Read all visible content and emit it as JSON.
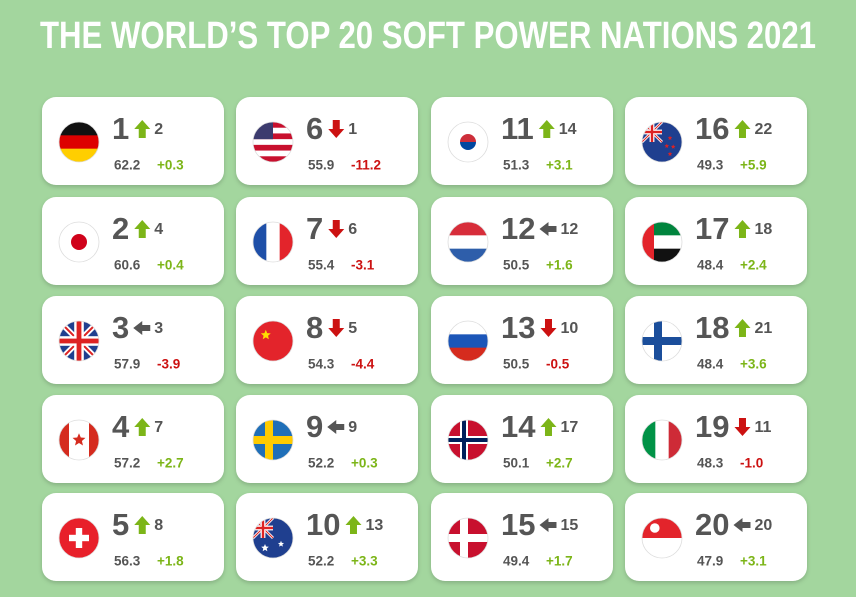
{
  "title": "THE WORLD’S TOP 20 SOFT POWER NATIONS 2021",
  "cards": [
    {
      "rank": "1",
      "previous": "2",
      "score": "62.2",
      "change": "+0.3"
    },
    {
      "rank": "2",
      "previous": "4",
      "score": "60.6",
      "change": "+0.4"
    },
    {
      "rank": "3",
      "previous": "3",
      "score": "57.9",
      "change": "-3.9"
    },
    {
      "rank": "4",
      "previous": "7",
      "score": "57.2",
      "change": "+2.7"
    },
    {
      "rank": "5",
      "previous": "8",
      "score": "56.3",
      "change": "+1.8"
    },
    {
      "rank": "6",
      "previous": "1",
      "score": "55.9",
      "change": "-11.2"
    },
    {
      "rank": "7",
      "previous": "6",
      "score": "55.4",
      "change": "-3.1"
    },
    {
      "rank": "8",
      "previous": "5",
      "score": "54.3",
      "change": "-4.4"
    },
    {
      "rank": "9",
      "previous": "9",
      "score": "52.2",
      "change": "+0.3"
    },
    {
      "rank": "10",
      "previous": "13",
      "score": "52.2",
      "change": "+3.3"
    },
    {
      "rank": "11",
      "previous": "14",
      "score": "51.3",
      "change": "+3.1"
    },
    {
      "rank": "12",
      "previous": "12",
      "score": "50.5",
      "change": "+1.6"
    },
    {
      "rank": "13",
      "previous": "10",
      "score": "50.5",
      "change": "-0.5"
    },
    {
      "rank": "14",
      "previous": "17",
      "score": "50.1",
      "change": "+2.7"
    },
    {
      "rank": "15",
      "previous": "15",
      "score": "49.4",
      "change": "+1.7"
    },
    {
      "rank": "16",
      "previous": "22",
      "score": "49.3",
      "change": "+5.9"
    },
    {
      "rank": "17",
      "previous": "18",
      "score": "48.4",
      "change": "+2.4"
    },
    {
      "rank": "18",
      "previous": "21",
      "score": "48.4",
      "change": "+3.6"
    },
    {
      "rank": "19",
      "previous": "11",
      "score": "48.3",
      "change": "-1.0"
    },
    {
      "rank": "20",
      "previous": "20",
      "score": "47.9",
      "change": "+3.1"
    }
  ]
}
